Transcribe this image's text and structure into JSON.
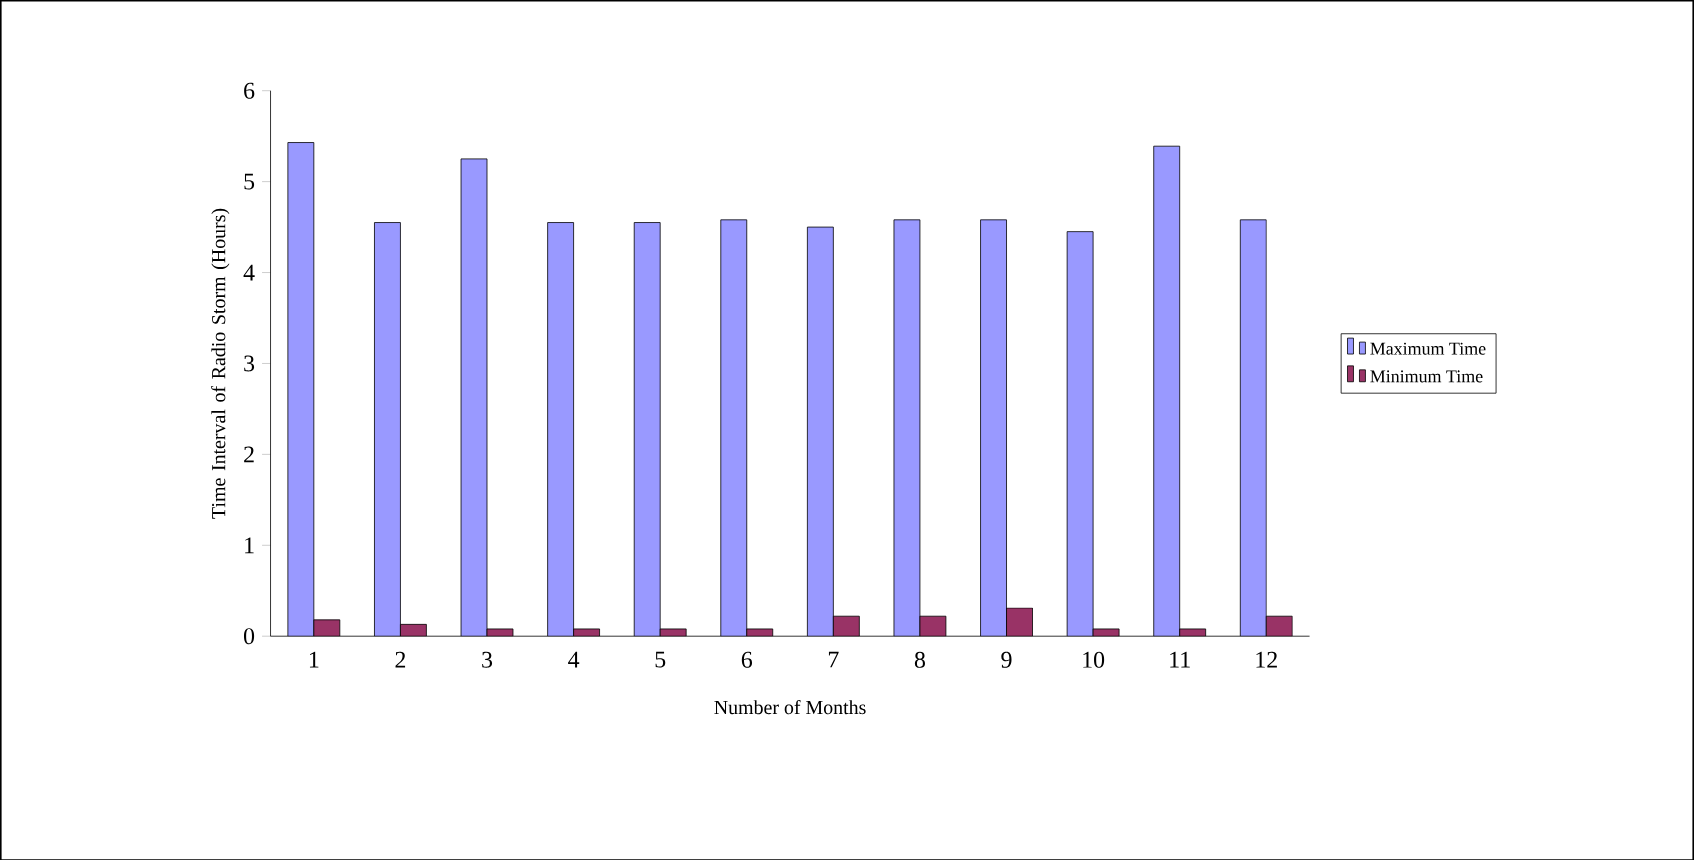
{
  "chart_data": {
    "type": "bar",
    "xlabel": "Number of Months",
    "ylabel": "Time Interval of Radio Storm (Hours)",
    "categories": [
      "1",
      "2",
      "3",
      "4",
      "5",
      "6",
      "7",
      "8",
      "9",
      "10",
      "11",
      "12"
    ],
    "series": [
      {
        "name": "Maximum Time",
        "color": "#9999ff",
        "values": [
          5.43,
          4.55,
          5.25,
          4.55,
          4.55,
          4.58,
          4.5,
          4.58,
          4.58,
          4.45,
          5.39,
          4.58
        ]
      },
      {
        "name": "Minimum Time",
        "color": "#993366",
        "values": [
          0.18,
          0.13,
          0.08,
          0.08,
          0.08,
          0.08,
          0.22,
          0.22,
          0.31,
          0.08,
          0.08,
          0.22
        ]
      }
    ],
    "ylim": [
      0,
      6
    ],
    "yticks": [
      0,
      1,
      2,
      3,
      4,
      5,
      6
    ],
    "grid": false,
    "legend": "right"
  }
}
